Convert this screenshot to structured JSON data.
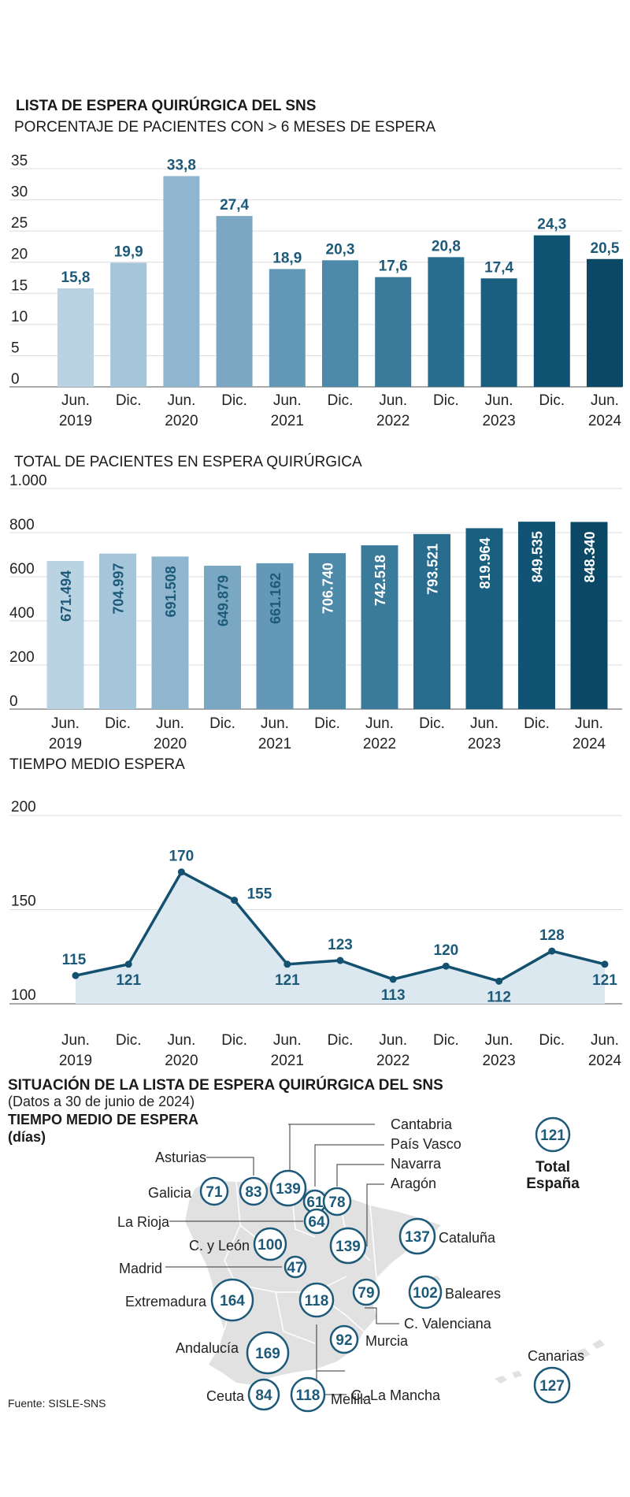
{
  "colors": {
    "bars": [
      "#b9d3e3",
      "#a5c5db",
      "#8fb6ce",
      "#7aa8c3",
      "#6399b6",
      "#4d89a9",
      "#3a7b9c",
      "#286c8e",
      "#1a5f80",
      "#115372",
      "#0b4866"
    ],
    "label": "#1d5a7a",
    "line": "#14506f",
    "area": "#dce8f0",
    "map": "#e0e0e0",
    "grid": "#dcdcdc"
  },
  "periods": [
    {
      "m": "Jun.",
      "y": "2019"
    },
    {
      "m": "Dic.",
      "y": ""
    },
    {
      "m": "Jun.",
      "y": "2020"
    },
    {
      "m": "Dic.",
      "y": ""
    },
    {
      "m": "Jun.",
      "y": "2021"
    },
    {
      "m": "Dic.",
      "y": ""
    },
    {
      "m": "Jun.",
      "y": "2022"
    },
    {
      "m": "Dic.",
      "y": ""
    },
    {
      "m": "Jun.",
      "y": "2023"
    },
    {
      "m": "Dic.",
      "y": ""
    },
    {
      "m": "Jun.",
      "y": "2024"
    }
  ],
  "chart_data": [
    {
      "type": "bar",
      "title": "LISTA DE ESPERA QUIRÚRGICA DEL SNS",
      "subtitle": "PORCENTAJE DE PACIENTES CON > 6 MESES DE ESPERA",
      "categories": [
        "Jun. 2019",
        "Dic. 2019",
        "Jun. 2020",
        "Dic. 2020",
        "Jun. 2021",
        "Dic. 2021",
        "Jun. 2022",
        "Dic. 2022",
        "Jun. 2023",
        "Dic. 2023",
        "Jun. 2024"
      ],
      "values": [
        15.8,
        19.9,
        33.8,
        27.4,
        18.9,
        20.3,
        17.6,
        20.8,
        17.4,
        24.3,
        20.5
      ],
      "labels": [
        "15,8",
        "19,9",
        "33,8",
        "27,4",
        "18,9",
        "20,3",
        "17,6",
        "20,8",
        "17,4",
        "24,3",
        "20,5"
      ],
      "yticks": [
        0,
        5,
        10,
        15,
        20,
        25,
        30,
        35
      ],
      "ytick_labels": [
        "0",
        "5",
        "10",
        "15",
        "20",
        "25",
        "30",
        "35"
      ],
      "ylim": [
        0,
        35
      ]
    },
    {
      "type": "bar",
      "title": "TOTAL DE PACIENTES EN ESPERA QUIRÚRGICA",
      "categories": [
        "Jun. 2019",
        "Dic. 2019",
        "Jun. 2020",
        "Dic. 2020",
        "Jun. 2021",
        "Dic. 2021",
        "Jun. 2022",
        "Dic. 2022",
        "Jun. 2023",
        "Dic. 2023",
        "Jun. 2024"
      ],
      "values": [
        671494,
        704997,
        691508,
        649879,
        661162,
        706740,
        742518,
        793521,
        819964,
        849535,
        848340
      ],
      "labels": [
        "671.494",
        "704.997",
        "691.508",
        "649.879",
        "661.162",
        "706.740",
        "742.518",
        "793.521",
        "819.964",
        "849.535",
        "848.340"
      ],
      "yticks": [
        0,
        200,
        400,
        600,
        800,
        1000
      ],
      "ytick_labels": [
        "0",
        "200",
        "400",
        "600",
        "800",
        "1.000"
      ],
      "ylim": [
        0,
        1000
      ],
      "unit_scale": 1000
    },
    {
      "type": "area",
      "title": "TIEMPO MEDIO ESPERA",
      "categories": [
        "Jun. 2019",
        "Dic. 2019",
        "Jun. 2020",
        "Dic. 2020",
        "Jun. 2021",
        "Dic. 2021",
        "Jun. 2022",
        "Dic. 2022",
        "Jun. 2023",
        "Dic. 2023",
        "Jun. 2024"
      ],
      "values": [
        115,
        121,
        170,
        155,
        121,
        123,
        113,
        120,
        112,
        128,
        121
      ],
      "labels": [
        "115",
        "121",
        "170",
        "155",
        "121",
        "123",
        "113",
        "120",
        "112",
        "128",
        "121"
      ],
      "label_pos": [
        "above",
        "below",
        "above",
        "right",
        "below",
        "above",
        "below",
        "above",
        "below",
        "above",
        "below"
      ],
      "yticks": [
        100,
        150,
        200
      ],
      "ytick_labels": [
        "100",
        "150",
        "200"
      ],
      "ylim": [
        100,
        200
      ]
    }
  ],
  "map": {
    "title": "SITUACIÓN DE LA LISTA DE ESPERA QUIRÚRGICA DEL SNS",
    "subtitle": "(Datos a 30 de junio de 2024)",
    "legend_title": "TIEMPO MEDIO DE ESPERA",
    "legend_unit": "(días)",
    "total_value": "121",
    "total_label_1": "Total",
    "total_label_2": "España",
    "source": "Fuente: SISLE-SNS",
    "regions": [
      {
        "name": "Galicia",
        "value": "71"
      },
      {
        "name": "Asturias",
        "value": "83"
      },
      {
        "name": "Cantabria",
        "value": "139"
      },
      {
        "name": "País Vasco",
        "value": "61"
      },
      {
        "name": "Navarra",
        "value": "78"
      },
      {
        "name": "Aragón",
        "value": "139"
      },
      {
        "name": "La Rioja",
        "value": "64"
      },
      {
        "name": "C. y León",
        "value": "100"
      },
      {
        "name": "Cataluña",
        "value": "137"
      },
      {
        "name": "Madrid",
        "value": "47"
      },
      {
        "name": "Extremadura",
        "value": "164"
      },
      {
        "name": "C.-La Mancha",
        "value": "118"
      },
      {
        "name": "C. Valenciana",
        "value": "79"
      },
      {
        "name": "Baleares",
        "value": "102"
      },
      {
        "name": "Murcia",
        "value": "92"
      },
      {
        "name": "Andalucía",
        "value": "169"
      },
      {
        "name": "Ceuta",
        "value": "84"
      },
      {
        "name": "Melilla",
        "value": "118"
      },
      {
        "name": "Canarias",
        "value": "127"
      }
    ]
  }
}
